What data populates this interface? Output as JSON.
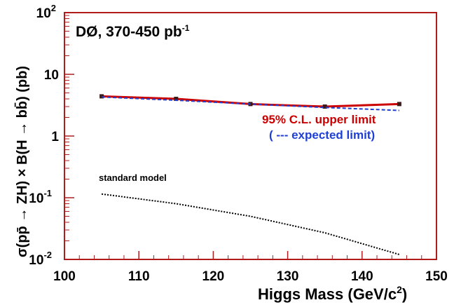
{
  "chart_data": {
    "type": "line",
    "title": "DØ, 370-450 pb",
    "title_superscript": "-1",
    "xlabel": "Higgs Mass (GeV/c",
    "xlabel_superscript": "2",
    "xlabel_tail": ")",
    "ylabel": "σ(pp̄ → ZH) × B(H → bb̄) (pb)",
    "xlim": [
      100,
      150
    ],
    "ylim": [
      0.01,
      100
    ],
    "yscale": "log",
    "grid": false,
    "x_ticks": [
      "100",
      "110",
      "120",
      "130",
      "140",
      "150"
    ],
    "y_ticks": [
      {
        "base": "10",
        "exp": "-2",
        "value": 0.01
      },
      {
        "base": "10",
        "exp": "-1",
        "value": 0.1
      },
      {
        "base": "1",
        "exp": "",
        "value": 1
      },
      {
        "base": "10",
        "exp": "",
        "value": 10
      },
      {
        "base": "10",
        "exp": "2",
        "value": 100
      }
    ],
    "series": [
      {
        "name": "95% C.L. upper limit",
        "color": "#cc0000",
        "style": "solid",
        "x": [
          105,
          115,
          125,
          135,
          145
        ],
        "y": [
          4.4,
          4.0,
          3.3,
          3.0,
          3.3
        ]
      },
      {
        "name": "( --- expected limit)",
        "color": "#1f3fd6",
        "style": "dashed",
        "x": [
          105,
          115,
          125,
          135,
          145
        ],
        "y": [
          4.3,
          3.8,
          3.3,
          2.9,
          2.6
        ]
      },
      {
        "name": "standard model",
        "color": "#000000",
        "style": "dotted",
        "x": [
          105,
          115,
          125,
          135,
          145
        ],
        "y": [
          0.115,
          0.08,
          0.05,
          0.027,
          0.012
        ]
      }
    ],
    "annotations": {
      "upper_limit_label": "95% C.L. upper limit",
      "expected_label": "( --- expected limit)",
      "sm_label": "standard model"
    },
    "colors": {
      "frame": "#b01c1c",
      "upper": "#cc0000",
      "expected": "#1f3fd6",
      "sm": "#000000"
    }
  }
}
